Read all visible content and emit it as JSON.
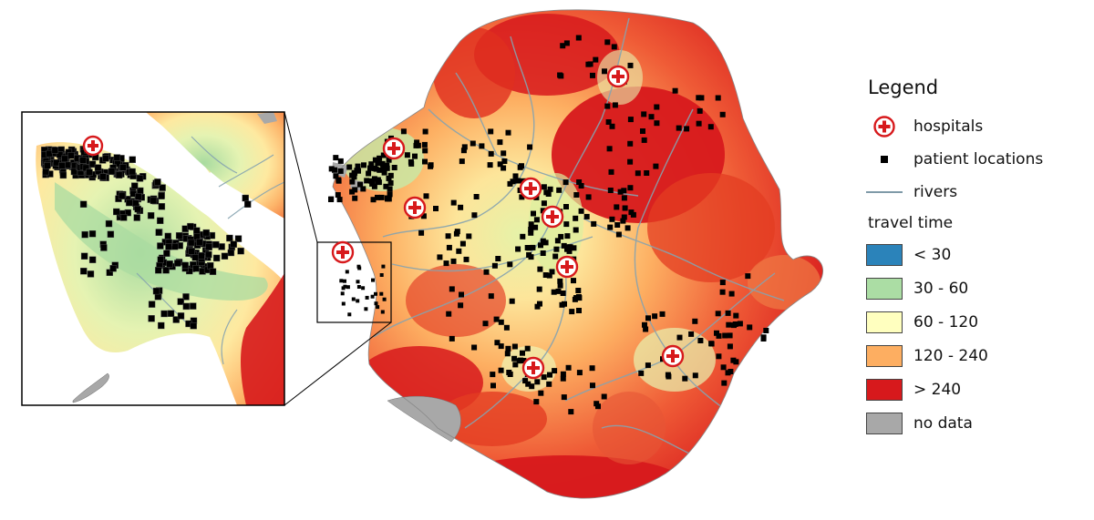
{
  "legend": {
    "title": "Legend",
    "items": [
      {
        "label": "hospitals",
        "symbol": "hospital-icon"
      },
      {
        "label": "patient locations",
        "symbol": "square-marker"
      },
      {
        "label": "rivers",
        "symbol": "river-line"
      }
    ],
    "travel_time_title": "travel time",
    "classes": [
      {
        "label": "< 30",
        "color": "#2b83ba"
      },
      {
        "label": "30 - 60",
        "color": "#abdda4"
      },
      {
        "label": "60 - 120",
        "color": "#ffffbf"
      },
      {
        "label": "120 - 240",
        "color": "#fdae61"
      },
      {
        "label": "> 240",
        "color": "#d7191c"
      },
      {
        "label": "no data",
        "color": "#a8a8a8"
      }
    ]
  },
  "colors": {
    "hospital": "#d7191c",
    "patient": "#000000",
    "river": "#7f9aa8",
    "no_data": "#a8a8a8"
  }
}
